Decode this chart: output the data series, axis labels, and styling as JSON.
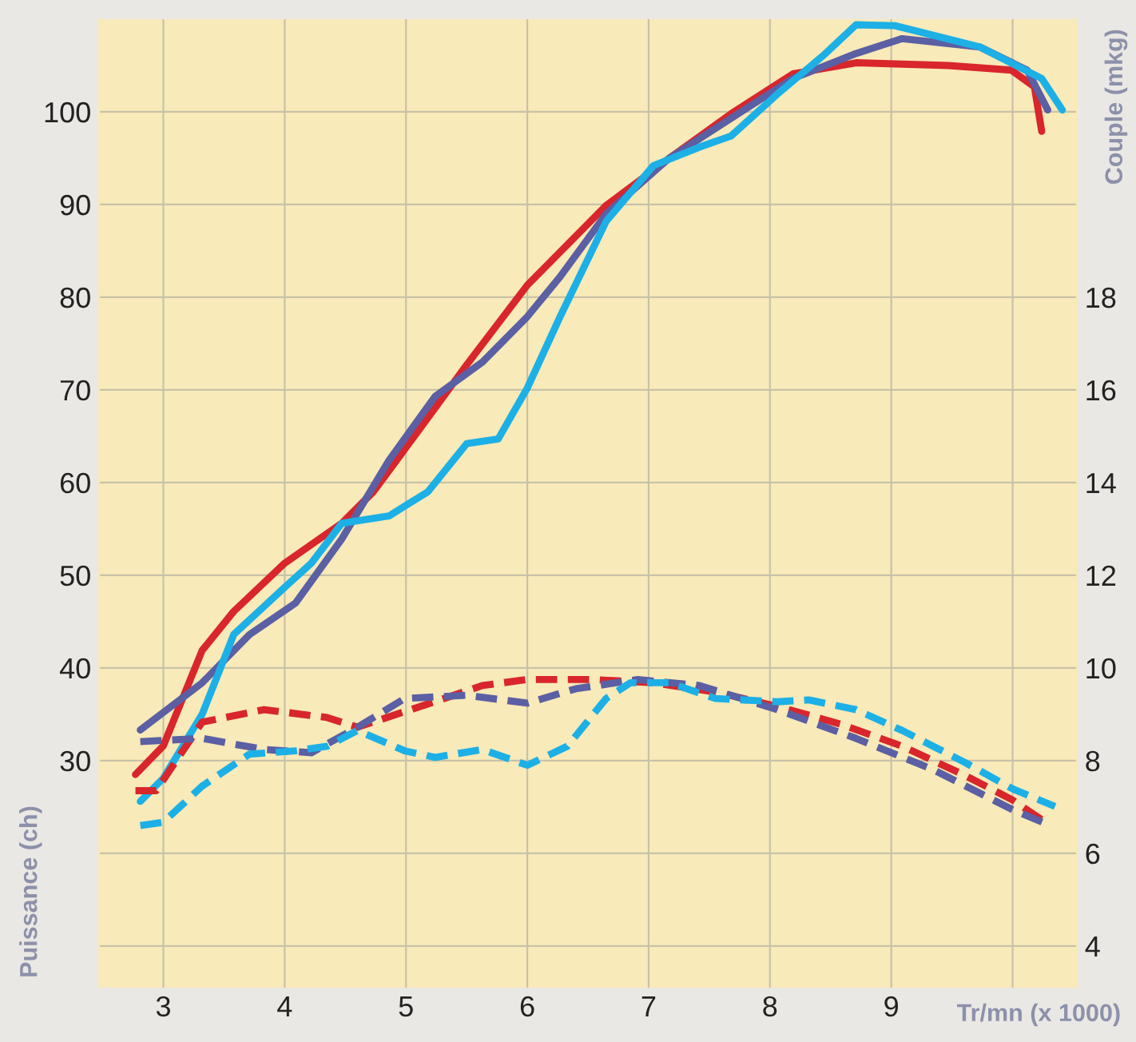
{
  "chart_data": {
    "type": "line",
    "xlabel": "Tr/mn (x 1000)",
    "ylabel": "Puissance (ch)",
    "y2label": "Couple (mkg)",
    "xlim": [
      2.47,
      10.53
    ],
    "xticks": [
      3,
      4,
      5,
      6,
      7,
      8,
      9,
      {
        "value": 10,
        "label": null
      }
    ],
    "ylim": [
      5.5,
      110
    ],
    "yticks": [
      {
        "value": 10,
        "label": null
      },
      {
        "value": 20,
        "label": null
      },
      30,
      40,
      50,
      60,
      70,
      80,
      90,
      100
    ],
    "y2lim": [
      3.1,
      24
    ],
    "y2ticks": [
      4,
      6,
      8,
      10,
      12,
      14,
      16,
      18
    ],
    "grid": true,
    "marker": "none",
    "series": [
      {
        "color": "#d8262c",
        "line_style": "solid",
        "x": [
          2.77,
          3,
          3.32,
          3.58,
          4,
          4.47,
          4.73,
          5.12,
          5.5,
          6,
          6.65,
          7.17,
          7.68,
          8.19,
          8.71,
          9.47,
          9.99,
          10.18,
          10.24
        ],
        "values": [
          28.5,
          31.6,
          41.9,
          46.1,
          51.3,
          55.6,
          59,
          65.9,
          72.7,
          81.3,
          89.9,
          95,
          99.8,
          104.1,
          105.3,
          105,
          104.5,
          102.7,
          97.9
        ]
      },
      {
        "color": "#5b5fa3",
        "line_style": "solid",
        "x": [
          2.81,
          3.32,
          3.71,
          4.09,
          4.47,
          4.86,
          5.24,
          5.63,
          6,
          6.27,
          6.65,
          7.17,
          7.68,
          8.19,
          8.71,
          9.09,
          9.73,
          10.12,
          10.29
        ],
        "values": [
          33.3,
          38.4,
          43.6,
          47,
          53.9,
          62.4,
          69.3,
          73,
          77.9,
          82.2,
          89,
          95,
          99.3,
          103.6,
          106.3,
          107.9,
          107,
          104.5,
          100.2
        ]
      },
      {
        "color": "#1cb0e6",
        "line_style": "solid",
        "x": [
          2.81,
          3,
          3.32,
          3.58,
          4,
          4.22,
          4.47,
          4.86,
          5.18,
          5.5,
          5.76,
          6,
          6.27,
          6.65,
          7.04,
          7.42,
          7.68,
          8.06,
          8.45,
          8.71,
          9.03,
          9.73,
          10.24,
          10.41
        ],
        "values": [
          25.6,
          28.1,
          35,
          43.6,
          48.7,
          51.3,
          55.6,
          56.4,
          59,
          64.2,
          64.7,
          70.2,
          77.9,
          88.2,
          94.2,
          96.2,
          97.4,
          101.9,
          106.2,
          109.4,
          109.3,
          107,
          103.6,
          100.2
        ]
      },
      {
        "color": "#d8262c",
        "line_style": "dashed",
        "axis": "y2",
        "x": [
          2.77,
          2.94,
          3.32,
          3.83,
          4.35,
          4.6,
          5.12,
          5.63,
          6,
          6.53,
          7.04,
          7.55,
          8.06,
          8.58,
          9.09,
          9.6,
          10,
          10.31
        ],
        "values": [
          7.35,
          7.35,
          8.83,
          9.1,
          8.93,
          8.72,
          9.17,
          9.62,
          9.75,
          9.75,
          9.68,
          9.48,
          9.17,
          8.79,
          8.31,
          7.69,
          7.15,
          6.6
        ]
      },
      {
        "color": "#5b5fa3",
        "line_style": "dashed",
        "axis": "y2",
        "x": [
          2.81,
          3.32,
          3.83,
          4.22,
          4.6,
          4.99,
          5.5,
          6,
          6.4,
          6.91,
          7.42,
          8.06,
          8.71,
          9.35,
          10,
          10.31
        ],
        "values": [
          8.41,
          8.48,
          8.24,
          8.17,
          8.72,
          9.34,
          9.41,
          9.24,
          9.55,
          9.75,
          9.62,
          9.1,
          8.48,
          7.8,
          6.94,
          6.6
        ]
      },
      {
        "color": "#1cb0e6",
        "line_style": "dashed",
        "axis": "y2",
        "x": [
          2.81,
          3,
          3.32,
          3.71,
          4.09,
          4.35,
          4.6,
          4.99,
          5.24,
          5.63,
          6,
          6.33,
          6.65,
          6.85,
          7.17,
          7.55,
          8.06,
          8.32,
          8.71,
          9.09,
          9.6,
          10,
          10.35
        ],
        "values": [
          6.6,
          6.67,
          7.45,
          8.14,
          8.21,
          8.31,
          8.65,
          8.21,
          8.07,
          8.24,
          7.9,
          8.31,
          9.34,
          9.68,
          9.68,
          9.34,
          9.27,
          9.31,
          9.1,
          8.65,
          7.97,
          7.39,
          7.01
        ]
      }
    ]
  }
}
